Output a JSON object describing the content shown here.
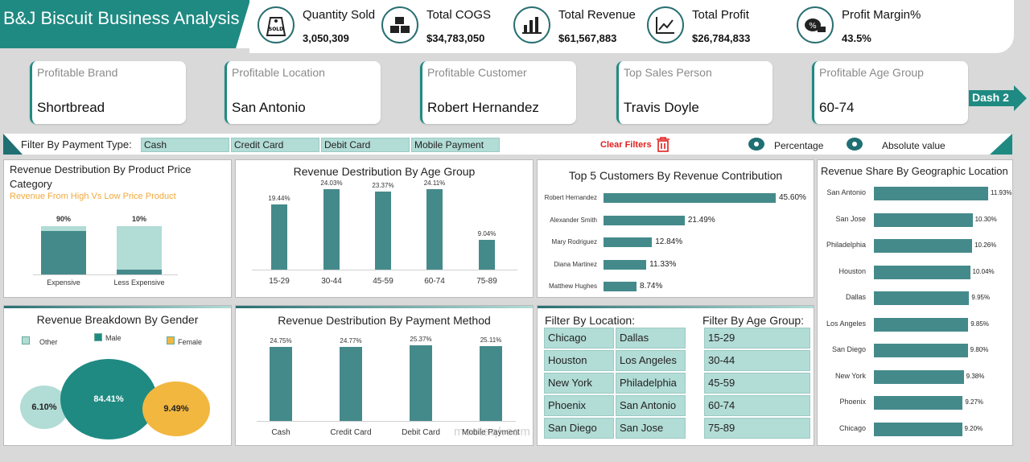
{
  "header": {
    "title": "B&J Biscuit Business Analysis"
  },
  "kpis": [
    {
      "label": "Quantity Sold",
      "value": "3,050,309",
      "icon": "sold-tag-icon"
    },
    {
      "label": "Total COGS",
      "value": "$34,783,050",
      "icon": "boxes-icon"
    },
    {
      "label": "Total Revenue",
      "value": "$61,567,883",
      "icon": "bar-chart-icon"
    },
    {
      "label": "Total Profit",
      "value": "$26,784,833",
      "icon": "trend-line-icon"
    },
    {
      "label": "Profit Margin%",
      "value": "43.5%",
      "icon": "money-percent-icon"
    }
  ],
  "insights": [
    {
      "label": "Profitable Brand",
      "value": "Shortbread"
    },
    {
      "label": "Profitable Location",
      "value": "San Antonio"
    },
    {
      "label": "Profitable Customer",
      "value": "Robert Hernandez"
    },
    {
      "label": "Top Sales Person",
      "value": "Travis Doyle"
    },
    {
      "label": "Profitable Age Group",
      "value": "60-74"
    }
  ],
  "nav": {
    "dash2_label": "Dash 2"
  },
  "filters": {
    "payment_label": "Filter By Payment Type:",
    "payment_types": [
      "Cash",
      "Credit Card",
      "Debit Card",
      "Mobile Payment"
    ],
    "clear_label": "Clear Filters",
    "percentage_label": "Percentage",
    "absolute_label": "Absolute value"
  },
  "colors": {
    "accent": "#1f8a82",
    "bar": "#458a8b",
    "bar_light": "#b2dcd6",
    "female": "#f2b73f",
    "other": "#b2dcd6",
    "clear": "#e02020"
  },
  "chart_data": [
    {
      "type": "bar",
      "title": "Revenue Destribution By Product Price Category",
      "subtitle": "Revenue From High Vs Low Price Product",
      "categories": [
        "Expensive",
        "Less Expensive"
      ],
      "series": [
        {
          "values": [
            90,
            10
          ]
        }
      ],
      "data_labels": [
        "90%",
        "10%"
      ]
    },
    {
      "type": "bar",
      "title": "Revenue Destribution By Age Group",
      "categories": [
        "15-29",
        "30-44",
        "45-59",
        "60-74",
        "75-89"
      ],
      "values": [
        19.44,
        24.03,
        23.37,
        24.11,
        9.04
      ],
      "data_labels": [
        "19.44%",
        "24.03%",
        "23.37%",
        "24.11%",
        "9.04%"
      ]
    },
    {
      "type": "bar",
      "title": "Top 5 Customers By Revenue  Contribution",
      "categories": [
        "Robert Hernandez",
        "Alexander Smith",
        "Mary Rodriguez",
        "Diana Martinez",
        "Matthew Hughes"
      ],
      "values": [
        45.6,
        21.49,
        12.84,
        11.33,
        8.74
      ],
      "data_labels": [
        "45.60%",
        "21.49%",
        "12.84%",
        "11.33%",
        "8.74%"
      ]
    },
    {
      "type": "bar",
      "title": "Revenue Share By Geographic Location",
      "categories": [
        "San Antonio",
        "San Jose",
        "Philadelphia",
        "Houston",
        "Dallas",
        "Los Angeles",
        "San Diego",
        "New York",
        "Phoenix",
        "Chicago"
      ],
      "values": [
        11.93,
        10.3,
        10.26,
        10.04,
        9.95,
        9.85,
        9.8,
        9.38,
        9.27,
        9.2
      ],
      "data_labels": [
        "11.93%",
        "10.30%",
        "10.26%",
        "10.04%",
        "9.95%",
        "9.85%",
        "9.80%",
        "9.38%",
        "9.27%",
        "9.20%"
      ]
    },
    {
      "type": "pie",
      "title": "Revenue Breakdown By Gender",
      "categories": [
        "Other",
        "Male",
        "Female"
      ],
      "values": [
        6.1,
        84.41,
        9.49
      ],
      "data_labels": [
        "6.10%",
        "84.41%",
        "9.49%"
      ]
    },
    {
      "type": "bar",
      "title": "Revenue Destribution By Payment Method",
      "categories": [
        "Cash",
        "Credit Card",
        "Debit Card",
        "Mobile Payment"
      ],
      "values": [
        24.75,
        24.77,
        25.37,
        25.11
      ],
      "data_labels": [
        "24.75%",
        "24.77%",
        "25.37%",
        "25.11%"
      ]
    }
  ],
  "slicers": {
    "location_title": "Filter By Location:",
    "locations": [
      "Chicago",
      "Dallas",
      "Houston",
      "Los Angeles",
      "New York",
      "Philadelphia",
      "Phoenix",
      "San Antonio",
      "San Diego",
      "San Jose"
    ],
    "age_title": "Filter By Age Group:",
    "ages": [
      "15-29",
      "30-44",
      "45-59",
      "60-74",
      "75-89"
    ]
  },
  "watermark": {
    "text": "mostaql.com"
  }
}
